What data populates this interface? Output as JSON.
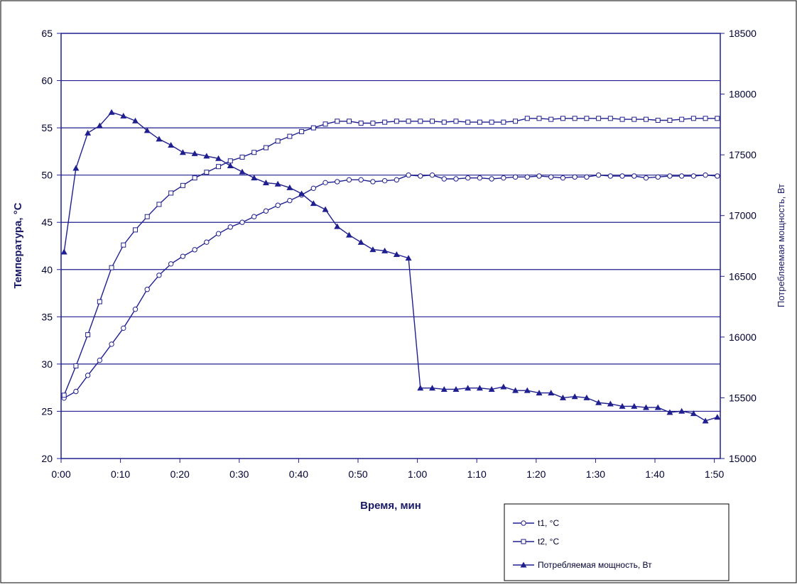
{
  "colors": {
    "series": "#1f1f8f",
    "grid": "#1f1f8f",
    "text": "#000033",
    "background": "#ffffff"
  },
  "chart_data": {
    "type": "line",
    "title": "",
    "xlabel": "Время, мин",
    "ylabel": "Температура, °С",
    "y2label": "Потребляемая мощность, Вт",
    "xlim": [
      0,
      111
    ],
    "ylim": [
      20,
      65
    ],
    "y2lim": [
      15000,
      18500
    ],
    "x_ticks": [
      "0:00",
      "0:10",
      "0:20",
      "0:30",
      "0:40",
      "0:50",
      "1:00",
      "1:10",
      "1:20",
      "1:30",
      "1:40",
      "1:50"
    ],
    "y_ticks": [
      "20",
      "25",
      "30",
      "35",
      "40",
      "45",
      "50",
      "55",
      "60",
      "65"
    ],
    "y2_ticks": [
      "15000",
      "15500",
      "16000",
      "16500",
      "17000",
      "17500",
      "18000",
      "18500"
    ],
    "grid": "horizontal major gridlines",
    "legend": "bottom-right",
    "series": [
      {
        "name": "t1, °C",
        "axis": "left",
        "marker": "circle-open",
        "x": [
          0.5,
          2.5,
          4.5,
          6.5,
          8.5,
          10.5,
          12.5,
          14.5,
          16.5,
          18.5,
          20.5,
          22.5,
          24.5,
          26.5,
          28.5,
          30.5,
          32.5,
          34.5,
          36.5,
          38.5,
          40.5,
          42.5,
          44.5,
          46.5,
          48.5,
          50.5,
          52.5,
          54.5,
          56.5,
          58.5,
          60.5,
          62.5,
          64.5,
          66.5,
          68.5,
          70.5,
          72.5,
          74.5,
          76.5,
          78.5,
          80.5,
          82.5,
          84.5,
          86.5,
          88.5,
          90.5,
          92.5,
          94.5,
          96.5,
          98.5,
          100.5,
          102.5,
          104.5,
          106.5,
          108.5,
          110.5
        ],
        "y": [
          26.4,
          27.1,
          28.8,
          30.4,
          32.1,
          33.8,
          35.8,
          37.9,
          39.4,
          40.6,
          41.4,
          42.1,
          42.9,
          43.8,
          44.5,
          45.0,
          45.6,
          46.2,
          46.8,
          47.3,
          47.9,
          48.6,
          49.2,
          49.3,
          49.5,
          49.5,
          49.3,
          49.4,
          49.5,
          50.0,
          49.9,
          50.0,
          49.6,
          49.6,
          49.7,
          49.7,
          49.6,
          49.7,
          49.8,
          49.8,
          49.9,
          49.8,
          49.7,
          49.8,
          49.8,
          50.0,
          49.9,
          49.9,
          49.9,
          49.7,
          49.8,
          49.9,
          49.9,
          49.9,
          50.0,
          49.9
        ]
      },
      {
        "name": "t2, °C",
        "axis": "left",
        "marker": "square-open",
        "x": [
          0.5,
          2.5,
          4.5,
          6.5,
          8.5,
          10.5,
          12.5,
          14.5,
          16.5,
          18.5,
          20.5,
          22.5,
          24.5,
          26.5,
          28.5,
          30.5,
          32.5,
          34.5,
          36.5,
          38.5,
          40.5,
          42.5,
          44.5,
          46.5,
          48.5,
          50.5,
          52.5,
          54.5,
          56.5,
          58.5,
          60.5,
          62.5,
          64.5,
          66.5,
          68.5,
          70.5,
          72.5,
          74.5,
          76.5,
          78.5,
          80.5,
          82.5,
          84.5,
          86.5,
          88.5,
          90.5,
          92.5,
          94.5,
          96.5,
          98.5,
          100.5,
          102.5,
          104.5,
          106.5,
          108.5,
          110.5
        ],
        "y": [
          26.7,
          29.8,
          33.1,
          36.6,
          40.2,
          42.6,
          44.2,
          45.6,
          46.9,
          48.1,
          48.9,
          49.7,
          50.3,
          50.9,
          51.5,
          51.9,
          52.4,
          52.9,
          53.6,
          54.1,
          54.6,
          55.0,
          55.4,
          55.7,
          55.7,
          55.5,
          55.5,
          55.6,
          55.7,
          55.7,
          55.7,
          55.7,
          55.6,
          55.7,
          55.6,
          55.6,
          55.6,
          55.6,
          55.7,
          56.0,
          56.0,
          55.9,
          56.0,
          56.0,
          56.0,
          56.0,
          56.0,
          55.9,
          55.9,
          55.9,
          55.8,
          55.8,
          55.9,
          56.0,
          56.0,
          56.0
        ]
      },
      {
        "name": "Потребляемая мощность, Вт",
        "axis": "right",
        "marker": "triangle-filled",
        "x": [
          0.5,
          2.5,
          4.5,
          6.5,
          8.5,
          10.5,
          12.5,
          14.5,
          16.5,
          18.5,
          20.5,
          22.5,
          24.5,
          26.5,
          28.5,
          30.5,
          32.5,
          34.5,
          36.5,
          38.5,
          40.5,
          42.5,
          44.5,
          46.5,
          48.5,
          50.5,
          52.5,
          54.5,
          56.5,
          58.5,
          60.5,
          62.5,
          64.5,
          66.5,
          68.5,
          70.5,
          72.5,
          74.5,
          76.5,
          78.5,
          80.5,
          82.5,
          84.5,
          86.5,
          88.5,
          90.5,
          92.5,
          94.5,
          96.5,
          98.5,
          100.5,
          102.5,
          104.5,
          106.5,
          108.5,
          110.5
        ],
        "y": [
          16700,
          17390,
          17680,
          17740,
          17850,
          17820,
          17780,
          17700,
          17630,
          17580,
          17520,
          17510,
          17490,
          17470,
          17410,
          17360,
          17310,
          17270,
          17260,
          17230,
          17180,
          17100,
          17050,
          16910,
          16840,
          16780,
          16720,
          16710,
          16680,
          16650,
          15580,
          15580,
          15570,
          15570,
          15580,
          15580,
          15570,
          15590,
          15560,
          15560,
          15540,
          15540,
          15500,
          15510,
          15500,
          15460,
          15450,
          15430,
          15430,
          15420,
          15420,
          15380,
          15390,
          15370,
          15310,
          15340
        ]
      }
    ]
  }
}
